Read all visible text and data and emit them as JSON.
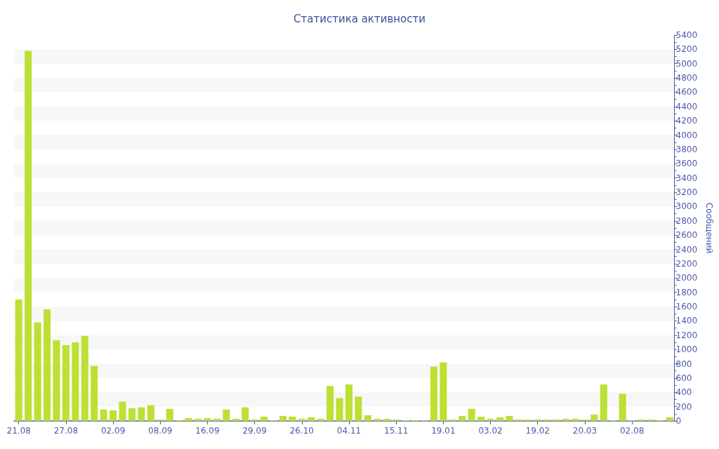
{
  "chart_data": {
    "type": "bar",
    "title": "Статистика активности",
    "ylabel": "Сообщений",
    "categories": [
      "21.08",
      null,
      null,
      null,
      null,
      "27.08",
      null,
      null,
      null,
      null,
      "02.09",
      null,
      null,
      null,
      null,
      "08.09",
      null,
      null,
      null,
      null,
      "16.09",
      null,
      null,
      null,
      null,
      "29.09",
      null,
      null,
      null,
      null,
      "26.10",
      null,
      null,
      null,
      null,
      "04.11",
      null,
      null,
      null,
      null,
      "15.11",
      null,
      null,
      null,
      null,
      "19.01",
      null,
      null,
      null,
      null,
      "03.02",
      null,
      null,
      null,
      null,
      "19.02",
      null,
      null,
      null,
      null,
      "20.03",
      null,
      null,
      null,
      null,
      "02.08",
      null,
      null,
      null,
      null
    ],
    "values": [
      1700,
      5180,
      1380,
      1560,
      1130,
      1060,
      1100,
      1190,
      770,
      160,
      150,
      270,
      180,
      190,
      220,
      20,
      170,
      10,
      40,
      30,
      40,
      30,
      160,
      30,
      190,
      20,
      60,
      10,
      70,
      60,
      30,
      50,
      30,
      490,
      320,
      510,
      340,
      80,
      30,
      30,
      20,
      10,
      10,
      10,
      760,
      820,
      20,
      70,
      170,
      60,
      30,
      50,
      70,
      20,
      20,
      20,
      20,
      20,
      30,
      30,
      20,
      90,
      510,
      10,
      380,
      10,
      20,
      20,
      10,
      50
    ],
    "color": "#bde034",
    "ylim": [
      0,
      5400
    ],
    "yticks": [
      0,
      200,
      400,
      600,
      800,
      1000,
      1200,
      1400,
      1600,
      1800,
      2000,
      2200,
      2400,
      2600,
      2800,
      3000,
      3200,
      3400,
      3600,
      3800,
      4000,
      4200,
      4400,
      4600,
      4800,
      5000,
      5200,
      5400
    ],
    "bands": [
      {
        "axis": "y",
        "from": 200,
        "to": 400,
        "color": "#f7f7f7"
      },
      {
        "axis": "y",
        "from": 600,
        "to": 800,
        "color": "#f7f7f7"
      },
      {
        "axis": "y",
        "from": 1000,
        "to": 1200,
        "color": "#f7f7f7"
      },
      {
        "axis": "y",
        "from": 1400,
        "to": 1600,
        "color": "#f7f7f7"
      },
      {
        "axis": "y",
        "from": 1800,
        "to": 2000,
        "color": "#f7f7f7"
      },
      {
        "axis": "y",
        "from": 2200,
        "to": 2400,
        "color": "#f7f7f7"
      },
      {
        "axis": "y",
        "from": 2600,
        "to": 2800,
        "color": "#f7f7f7"
      },
      {
        "axis": "y",
        "from": 3000,
        "to": 3200,
        "color": "#f7f7f7"
      },
      {
        "axis": "y",
        "from": 3400,
        "to": 3600,
        "color": "#f7f7f7"
      },
      {
        "axis": "y",
        "from": 3800,
        "to": 4000,
        "color": "#f7f7f7"
      },
      {
        "axis": "y",
        "from": 4200,
        "to": 4400,
        "color": "#f7f7f7"
      },
      {
        "axis": "y",
        "from": 4600,
        "to": 4800,
        "color": "#f7f7f7"
      },
      {
        "axis": "y",
        "from": 5000,
        "to": 5200,
        "color": "#f7f7f7"
      }
    ]
  }
}
